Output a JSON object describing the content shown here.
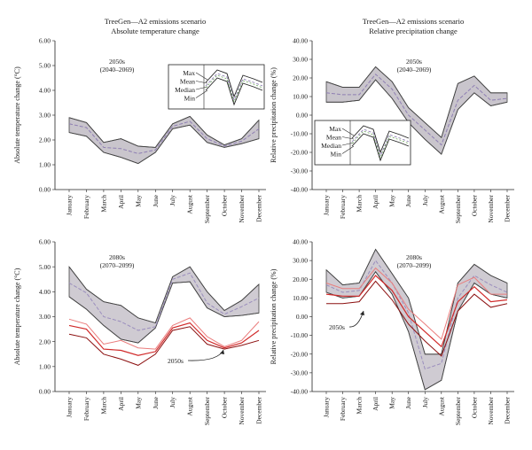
{
  "months": [
    "January",
    "February",
    "March",
    "April",
    "May",
    "June",
    "July",
    "August",
    "September",
    "October",
    "November",
    "December"
  ],
  "colors": {
    "band2050": "#c9c5cc",
    "band2080": "#cfcbd2",
    "bandEdge": "#444444",
    "mean2050": "#8f7fb3",
    "mean2080": "#9a8dbd",
    "red": "#d12b2b",
    "red_light": "#ea7c7c",
    "red_dark": "#8c1010",
    "axis": "#222222"
  },
  "legend": {
    "max": "Max",
    "mean": "Mean",
    "median": "Median",
    "min": "Min"
  },
  "chart_data": [
    {
      "type": "area",
      "panel": "top-left",
      "title": "TreeGen—A2 emissions scenario",
      "subtitle": "Absolute temperature change",
      "ylabel": "Absolute temperature change (°C)",
      "ylim": [
        0,
        6
      ],
      "yticks": [
        0,
        1,
        2,
        3,
        4,
        5,
        6
      ],
      "ytick_labels": [
        "0.00",
        "1.00",
        "2.00",
        "3.00",
        "4.00",
        "5.00",
        "6.00"
      ],
      "period_label": "2050s",
      "period_range": "(2040–2069)",
      "has_legend_inset": true,
      "series": [
        {
          "name": "Max",
          "values": [
            2.9,
            2.7,
            1.9,
            2.05,
            1.75,
            1.7,
            2.65,
            2.95,
            2.2,
            1.8,
            2.05,
            2.8
          ]
        },
        {
          "name": "Mean",
          "values": [
            2.65,
            2.5,
            1.7,
            1.65,
            1.45,
            1.6,
            2.55,
            2.75,
            2.05,
            1.75,
            1.95,
            2.45
          ]
        },
        {
          "name": "Min",
          "values": [
            2.3,
            2.15,
            1.5,
            1.3,
            1.05,
            1.5,
            2.45,
            2.6,
            1.9,
            1.7,
            1.85,
            2.05
          ]
        }
      ]
    },
    {
      "type": "area",
      "panel": "top-right",
      "title": "TreeGen—A2 emissions scenario",
      "subtitle": "Relative precipitation change",
      "ylabel": "Relative precipitation change (%)",
      "ylim": [
        -40,
        40
      ],
      "yticks": [
        -40,
        -30,
        -20,
        -10,
        0,
        10,
        20,
        30,
        40
      ],
      "ytick_labels": [
        "-40.00",
        "-30.00",
        "-20.00",
        "-10.00",
        "0.00",
        "10.00",
        "20.00",
        "30.00",
        "40.00"
      ],
      "period_label": "2050s",
      "period_range": "(2040–2069)",
      "has_legend_inset": true,
      "series": [
        {
          "name": "Max",
          "values": [
            18,
            15,
            15,
            26,
            18,
            4,
            -4,
            -12,
            17,
            21,
            12,
            12
          ]
        },
        {
          "name": "Mean",
          "values": [
            12,
            11,
            11,
            22,
            14,
            0,
            -8,
            -16,
            8,
            16,
            8,
            9
          ]
        },
        {
          "name": "Min",
          "values": [
            7,
            7,
            8,
            19,
            9,
            -4,
            -13,
            -21,
            3,
            12,
            5,
            7
          ]
        }
      ]
    },
    {
      "type": "area",
      "panel": "bottom-left",
      "title": "",
      "ylabel": "Absolute temperature change (°C)",
      "ylim": [
        0,
        6
      ],
      "yticks": [
        0,
        1,
        2,
        3,
        4,
        5,
        6
      ],
      "ytick_labels": [
        "0.00",
        "1.00",
        "2.00",
        "3.00",
        "4.00",
        "5.00",
        "6.00"
      ],
      "period_label": "2080s",
      "period_range": "(2070–2099)",
      "annotation": "2050s",
      "series": [
        {
          "name": "Max",
          "values": [
            5.0,
            4.1,
            3.6,
            3.45,
            2.95,
            2.75,
            4.6,
            5.0,
            4.0,
            3.25,
            3.65,
            4.3
          ]
        },
        {
          "name": "Mean",
          "values": [
            4.35,
            3.95,
            3.0,
            2.8,
            2.45,
            2.6,
            4.5,
            4.75,
            3.55,
            3.1,
            3.4,
            3.75
          ]
        },
        {
          "name": "Min",
          "values": [
            3.8,
            3.3,
            2.65,
            2.1,
            1.95,
            2.55,
            4.35,
            4.4,
            3.35,
            3.0,
            3.05,
            3.15
          ]
        }
      ],
      "reference_2050s": [
        {
          "name": "Max",
          "values": [
            2.9,
            2.7,
            1.9,
            2.05,
            1.75,
            1.7,
            2.65,
            2.95,
            2.2,
            1.8,
            2.05,
            2.8
          ]
        },
        {
          "name": "Mean",
          "values": [
            2.65,
            2.5,
            1.7,
            1.65,
            1.45,
            1.6,
            2.55,
            2.75,
            2.05,
            1.75,
            1.95,
            2.45
          ]
        },
        {
          "name": "Min",
          "values": [
            2.3,
            2.15,
            1.5,
            1.3,
            1.05,
            1.5,
            2.45,
            2.6,
            1.9,
            1.7,
            1.85,
            2.05
          ]
        }
      ]
    },
    {
      "type": "area",
      "panel": "bottom-right",
      "title": "",
      "ylabel": "Relative precipitation change (%)",
      "ylim": [
        -40,
        40
      ],
      "yticks": [
        -40,
        -30,
        -20,
        -10,
        0,
        10,
        20,
        30,
        40
      ],
      "ytick_labels": [
        "-40.00",
        "-30.00",
        "-20.00",
        "-10.00",
        "0.00",
        "10.00",
        "20.00",
        "30.00",
        "40.00"
      ],
      "period_label": "2080s",
      "period_range": "(2070–2099)",
      "annotation": "2050s",
      "series": [
        {
          "name": "Max",
          "values": [
            25,
            17,
            18,
            36,
            23,
            10,
            -20,
            -20,
            18,
            28,
            22,
            18
          ]
        },
        {
          "name": "Mean",
          "values": [
            17,
            13,
            14,
            30,
            18,
            2,
            -28,
            -25,
            10,
            22,
            17,
            13
          ]
        },
        {
          "name": "Min",
          "values": [
            13,
            10,
            11,
            24,
            12,
            -8,
            -39,
            -34,
            3,
            18,
            12,
            10
          ]
        }
      ],
      "reference_2050s": [
        {
          "name": "Max",
          "values": [
            18,
            15,
            15,
            26,
            18,
            4,
            -4,
            -12,
            17,
            21,
            12,
            12
          ]
        },
        {
          "name": "Mean",
          "values": [
            12,
            11,
            11,
            22,
            14,
            0,
            -8,
            -16,
            8,
            16,
            8,
            9
          ]
        },
        {
          "name": "Min",
          "values": [
            7,
            7,
            8,
            19,
            9,
            -4,
            -13,
            -21,
            3,
            12,
            5,
            7
          ]
        }
      ]
    }
  ]
}
